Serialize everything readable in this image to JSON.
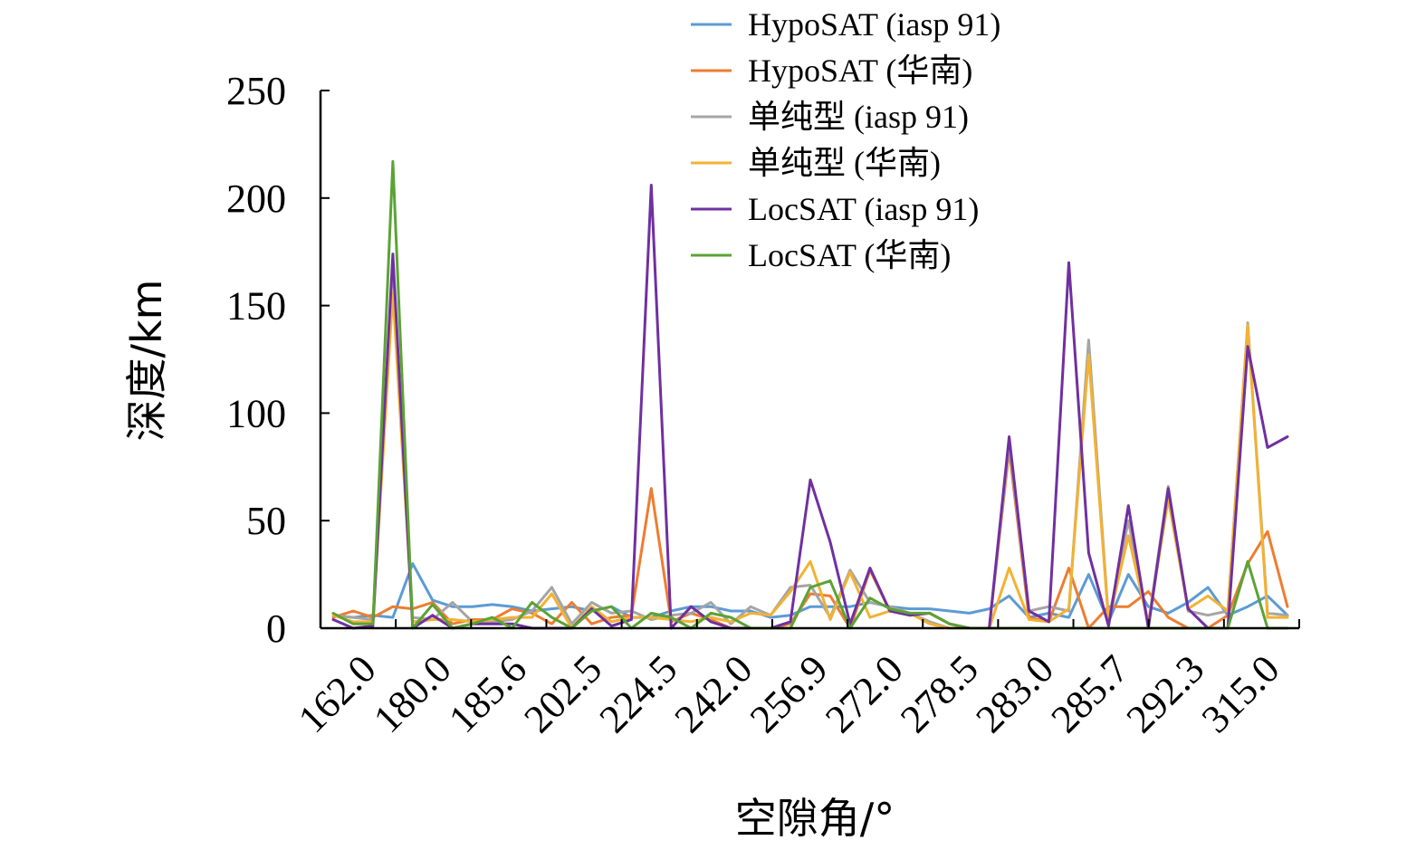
{
  "chart_data": {
    "type": "line",
    "xlabel": "空隙角/°",
    "ylabel": "深度/km",
    "ylim": [
      0,
      250
    ],
    "yticks": [
      0,
      50,
      100,
      150,
      200,
      250
    ],
    "xticklabels": [
      "162.0",
      "180.0",
      "185.6",
      "202.5",
      "224.5",
      "242.0",
      "256.9",
      "272.0",
      "278.5",
      "283.0",
      "285.7",
      "292.3",
      "315.0"
    ],
    "n_points": 49,
    "legend_position": "top-right",
    "series": [
      {
        "name": "HypoSAT (iasp 91)",
        "color": "#5b9bd5",
        "values": [
          6,
          5,
          6,
          5,
          30,
          13,
          10,
          10,
          11,
          10,
          8,
          9,
          10,
          8,
          10,
          5,
          5,
          8,
          10,
          10,
          8,
          8,
          5,
          6,
          10,
          10,
          10,
          12,
          10,
          9,
          9,
          8,
          7,
          9,
          15,
          5,
          7,
          5,
          25,
          3,
          25,
          10,
          7,
          12,
          19,
          6,
          10,
          15,
          6
        ]
      },
      {
        "name": "HypoSAT (华南)",
        "color": "#ed7d31",
        "values": [
          5,
          8,
          5,
          10,
          9,
          12,
          2,
          4,
          4,
          9,
          7,
          2,
          12,
          2,
          5,
          6,
          65,
          3,
          7,
          4,
          0,
          0,
          0,
          2,
          16,
          15,
          0,
          27,
          8,
          6,
          7,
          2,
          0,
          0,
          83,
          5,
          3,
          28,
          0,
          10,
          10,
          17,
          5,
          0,
          0,
          6,
          30,
          45,
          10
        ]
      },
      {
        "name": "单纯型 (iasp 91)",
        "color": "#a5a5a5",
        "values": [
          6,
          5,
          4,
          170,
          5,
          4,
          12,
          3,
          3,
          4,
          8,
          19,
          2,
          12,
          7,
          8,
          4,
          6,
          7,
          12,
          2,
          10,
          6,
          19,
          20,
          5,
          27,
          12,
          10,
          7,
          3,
          0,
          0,
          0,
          86,
          8,
          10,
          8,
          134,
          4,
          50,
          2,
          66,
          8,
          6,
          8,
          142,
          7,
          6
        ]
      },
      {
        "name": "单纯型 (华南)",
        "color": "#f2b233",
        "values": [
          6,
          3,
          3,
          156,
          3,
          4,
          4,
          3,
          4,
          5,
          5,
          16,
          0,
          10,
          3,
          5,
          5,
          4,
          3,
          5,
          3,
          7,
          6,
          17,
          31,
          4,
          26,
          5,
          8,
          7,
          2,
          0,
          0,
          0,
          28,
          4,
          3,
          9,
          127,
          3,
          43,
          2,
          60,
          9,
          15,
          8,
          141,
          5,
          5
        ]
      },
      {
        "name": "LocSAT (iasp 91)",
        "color": "#7030a0",
        "values": [
          4,
          0,
          1,
          174,
          0,
          6,
          0,
          2,
          2,
          2,
          0,
          0,
          0,
          9,
          1,
          4,
          206,
          0,
          10,
          3,
          0,
          0,
          0,
          3,
          69,
          40,
          2,
          28,
          8,
          6,
          7,
          2,
          0,
          0,
          89,
          8,
          3,
          170,
          35,
          1,
          57,
          0,
          65,
          9,
          0,
          0,
          131,
          84,
          89
        ]
      },
      {
        "name": "LocSAT (华南)",
        "color": "#5ba335",
        "values": [
          7,
          2,
          2,
          217,
          0,
          11,
          0,
          2,
          5,
          0,
          12,
          5,
          0,
          8,
          10,
          0,
          7,
          5,
          0,
          7,
          5,
          0,
          0,
          0,
          19,
          22,
          0,
          14,
          9,
          7,
          7,
          2,
          0,
          0,
          0,
          0,
          0,
          0,
          0,
          0,
          0,
          0,
          0,
          0,
          0,
          0,
          31,
          0,
          0
        ]
      }
    ]
  }
}
